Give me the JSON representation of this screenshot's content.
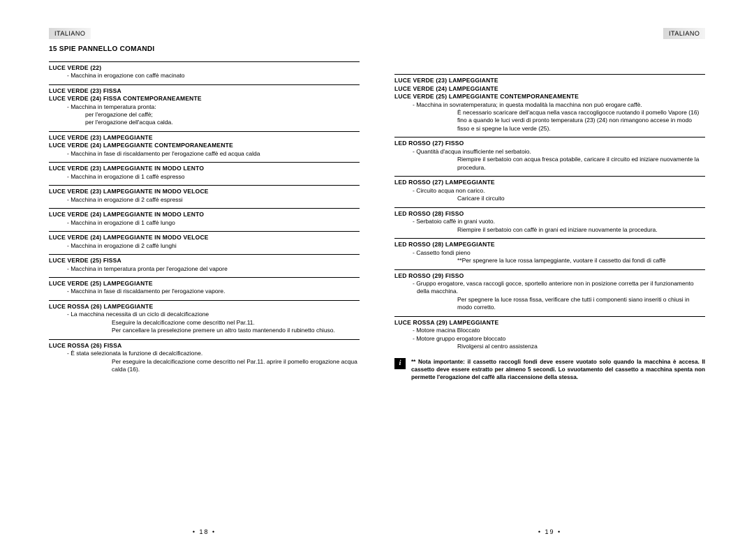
{
  "lang_label": "ITALIANO",
  "section_heading": "15   SPIE PANNELLO COMANDI",
  "page_left_num": "• 18 •",
  "page_right_num": "• 19 •",
  "left": {
    "e1": {
      "t": "LUCE VERDE (22)",
      "b": "- Macchina in erogazione con caffè macinato"
    },
    "e2": {
      "t1": "LUCE VERDE (23) FISSA",
      "t2": "LUCE VERDE (24) FISSA CONTEMPORANEAMENTE",
      "b1": "- Macchina in temperatura pronta:",
      "b2": "per l'erogazione del caffè;",
      "b3": "per l'erogazione dell'acqua calda."
    },
    "e3": {
      "t1": "LUCE VERDE (23) LAMPEGGIANTE",
      "t2": "LUCE VERDE (24) LAMPEGGIANTE CONTEMPORANEAMENTE",
      "b": "- Macchina in fase di riscaldamento per l'erogazione caffè ed acqua calda"
    },
    "e4": {
      "t": "LUCE VERDE (23) LAMPEGGIANTE IN MODO LENTO",
      "b": "- Macchina in erogazione di 1 caffè espresso"
    },
    "e5": {
      "t": "LUCE VERDE (23) LAMPEGGIANTE IN MODO VELOCE",
      "b": "- Macchina in erogazione di 2 caffè espressi"
    },
    "e6": {
      "t": "LUCE VERDE (24) LAMPEGGIANTE IN MODO LENTO",
      "b": "- Macchina in erogazione di 1 caffè lungo"
    },
    "e7": {
      "t": "LUCE VERDE (24) LAMPEGGIANTE IN MODO VELOCE",
      "b": "- Macchina in erogazione di 2 caffè lunghi"
    },
    "e8": {
      "t": "LUCE VERDE (25) FISSA",
      "b": "- Macchina in temperatura pronta per l'erogazione del vapore"
    },
    "e9": {
      "t": "LUCE VERDE (25) LAMPEGGIANTE",
      "b": "- Macchina in fase di riscaldamento per l'erogazione vapore."
    },
    "e10": {
      "t": "LUCE ROSSA (26) LAMPEGGIANTE",
      "b": "- La macchina necessita di un ciclo di decalcificazione",
      "s1": "Eseguire la decalcificazione come descritto nel Par.11.",
      "s2": "Per cancellare la preselezione premere un altro tasto mantenendo il rubinetto chiuso."
    },
    "e11": {
      "t": "LUCE ROSSA (26) FISSA",
      "b": "- È stata selezionata la funzione di decalcificazione.",
      "s": "Per eseguire la decalcificazione come descritto nel Par.11. aprire il pomello erogazione acqua calda (16)."
    }
  },
  "right": {
    "e1": {
      "t1": "LUCE VERDE (23) LAMPEGGIANTE",
      "t2": "LUCE VERDE (24) LAMPEGGIANTE",
      "t3": "LUCE VERDE (25) LAMPEGGIANTE CONTEMPORANEAMENTE",
      "b": "- Macchina in sovratemperatura; in questa modalità la macchina non può erogare caffè.",
      "s": "È necessario scaricare dell'acqua nella vasca raccogligocce ruotando il pomello Vapore (16) fino a quando le luci verdi di pronto temperatura (23) (24) non rimangono accese in modo fisso e si spegne la luce verde (25)."
    },
    "e2": {
      "t": "LED ROSSO (27) FISSO",
      "b": "- Quantità d'acqua insufficiente nel serbatoio.",
      "s": "Riempire il serbatoio con acqua fresca potabile, caricare il circuito ed iniziare nuovamente la procedura."
    },
    "e3": {
      "t": "LED ROSSO (27) LAMPEGGIANTE",
      "b": "- Circuito acqua non carico.",
      "s": "Caricare il circuito"
    },
    "e4": {
      "t": "LED ROSSO (28) FISSO",
      "b": "- Serbatoio caffè in grani vuoto.",
      "s": "Riempire il serbatoio con caffè in grani ed iniziare nuovamente la procedura."
    },
    "e5": {
      "t": "LED ROSSO (28) LAMPEGGIANTE",
      "b": "- Cassetto fondi pieno",
      "s": "**Per spegnere la luce rossa lampeggiante, vuotare il cassetto dai fondi di caffè"
    },
    "e6": {
      "t": "LED ROSSO (29) FISSO",
      "b": "- Gruppo erogatore, vasca raccogli gocce, sportello anteriore non in posizione corretta per il funzionamento della macchina.",
      "s": "Per spegnere la luce rossa fissa, verificare che tutti i componenti siano inseriti o chiusi in modo corretto."
    },
    "e7": {
      "t": "LUCE ROSSA (29) LAMPEGGIANTE",
      "b1": "- Motore macina Bloccato",
      "b2": "- Motore gruppo erogatore bloccato",
      "s": "Rivolgersi al centro assistenza"
    },
    "note": "** Nota importante: il cassetto raccogli fondi deve essere vuotato solo quando la macchina è accesa. Il cassetto deve essere estratto per almeno 5 secondi. Lo svuotamento del cassetto a macchina spenta non permette l'erogazione del caffè alla riaccensione della stessa."
  }
}
